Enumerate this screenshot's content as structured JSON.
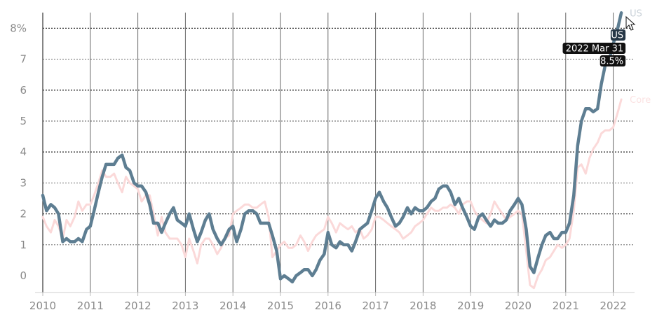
{
  "chart_data": {
    "type": "line",
    "title": "",
    "xlabel": "",
    "ylabel": "",
    "xlim": [
      2009.95,
      2022.45
    ],
    "ylim": [
      -0.5,
      8.5
    ],
    "x_ticks": [
      "2010",
      "2011",
      "2012",
      "2013",
      "2014",
      "2015",
      "2016",
      "2017",
      "2018",
      "2019",
      "2020",
      "2021",
      "2022"
    ],
    "y_ticks": [
      {
        "value": 0,
        "label": "0"
      },
      {
        "value": 1,
        "label": "1"
      },
      {
        "value": 2,
        "label": "2"
      },
      {
        "value": 3,
        "label": "3"
      },
      {
        "value": 4,
        "label": "4"
      },
      {
        "value": 5,
        "label": "5"
      },
      {
        "value": 6,
        "label": "6"
      },
      {
        "value": 7,
        "label": "7"
      },
      {
        "value": 8,
        "label": "8%"
      }
    ],
    "grid": true,
    "series": [
      {
        "name": "US",
        "color": "#5e7e92",
        "x": [
          2010.0,
          2010.08,
          2010.17,
          2010.25,
          2010.33,
          2010.42,
          2010.5,
          2010.58,
          2010.67,
          2010.75,
          2010.83,
          2010.92,
          2011.0,
          2011.08,
          2011.17,
          2011.25,
          2011.33,
          2011.42,
          2011.5,
          2011.58,
          2011.67,
          2011.75,
          2011.83,
          2011.92,
          2012.0,
          2012.08,
          2012.17,
          2012.25,
          2012.33,
          2012.42,
          2012.5,
          2012.58,
          2012.67,
          2012.75,
          2012.83,
          2012.92,
          2013.0,
          2013.08,
          2013.17,
          2013.25,
          2013.33,
          2013.42,
          2013.5,
          2013.58,
          2013.67,
          2013.75,
          2013.83,
          2013.92,
          2014.0,
          2014.08,
          2014.17,
          2014.25,
          2014.33,
          2014.42,
          2014.5,
          2014.58,
          2014.67,
          2014.75,
          2014.83,
          2014.92,
          2015.0,
          2015.08,
          2015.17,
          2015.25,
          2015.33,
          2015.42,
          2015.5,
          2015.58,
          2015.67,
          2015.75,
          2015.83,
          2015.92,
          2016.0,
          2016.08,
          2016.17,
          2016.25,
          2016.33,
          2016.42,
          2016.5,
          2016.58,
          2016.67,
          2016.75,
          2016.83,
          2016.92,
          2017.0,
          2017.08,
          2017.17,
          2017.25,
          2017.33,
          2017.42,
          2017.5,
          2017.58,
          2017.67,
          2017.75,
          2017.83,
          2017.92,
          2018.0,
          2018.08,
          2018.17,
          2018.25,
          2018.33,
          2018.42,
          2018.5,
          2018.58,
          2018.67,
          2018.75,
          2018.83,
          2018.92,
          2019.0,
          2019.08,
          2019.17,
          2019.25,
          2019.33,
          2019.42,
          2019.5,
          2019.58,
          2019.67,
          2019.75,
          2019.83,
          2019.92,
          2020.0,
          2020.08,
          2020.17,
          2020.25,
          2020.33,
          2020.42,
          2020.5,
          2020.58,
          2020.67,
          2020.75,
          2020.83,
          2020.92,
          2021.0,
          2021.08,
          2021.17,
          2021.25,
          2021.33,
          2021.42,
          2021.5,
          2021.58,
          2021.67,
          2021.75,
          2021.83,
          2021.92,
          2022.0,
          2022.08,
          2022.17
        ],
        "values": [
          2.6,
          2.1,
          2.3,
          2.2,
          2.0,
          1.1,
          1.2,
          1.1,
          1.1,
          1.2,
          1.1,
          1.5,
          1.6,
          2.1,
          2.7,
          3.2,
          3.6,
          3.6,
          3.6,
          3.8,
          3.9,
          3.5,
          3.4,
          3.0,
          2.9,
          2.9,
          2.7,
          2.3,
          1.7,
          1.7,
          1.4,
          1.7,
          2.0,
          2.2,
          1.8,
          1.7,
          1.6,
          2.0,
          1.5,
          1.1,
          1.4,
          1.8,
          2.0,
          1.5,
          1.2,
          1.0,
          1.2,
          1.5,
          1.6,
          1.1,
          1.5,
          2.0,
          2.1,
          2.1,
          2.0,
          1.7,
          1.7,
          1.7,
          1.3,
          0.8,
          -0.1,
          0.0,
          -0.1,
          -0.2,
          0.0,
          0.1,
          0.2,
          0.2,
          0.0,
          0.2,
          0.5,
          0.7,
          1.4,
          1.0,
          0.9,
          1.1,
          1.0,
          1.0,
          0.8,
          1.1,
          1.5,
          1.6,
          1.7,
          2.1,
          2.5,
          2.7,
          2.4,
          2.2,
          1.9,
          1.6,
          1.7,
          1.9,
          2.2,
          2.0,
          2.2,
          2.1,
          2.1,
          2.2,
          2.4,
          2.5,
          2.8,
          2.9,
          2.9,
          2.7,
          2.3,
          2.5,
          2.2,
          1.9,
          1.6,
          1.5,
          1.9,
          2.0,
          1.8,
          1.6,
          1.8,
          1.7,
          1.7,
          1.8,
          2.1,
          2.3,
          2.5,
          2.3,
          1.5,
          0.3,
          0.1,
          0.6,
          1.0,
          1.3,
          1.4,
          1.2,
          1.2,
          1.4,
          1.4,
          1.7,
          2.6,
          4.2,
          5.0,
          5.4,
          5.4,
          5.3,
          5.4,
          6.2,
          6.8,
          7.0,
          7.5,
          7.9,
          8.5
        ]
      },
      {
        "name": "Core",
        "color": "#fbd9d9",
        "x": [
          2010.0,
          2010.08,
          2010.17,
          2010.25,
          2010.33,
          2010.42,
          2010.5,
          2010.58,
          2010.67,
          2010.75,
          2010.83,
          2010.92,
          2011.0,
          2011.08,
          2011.17,
          2011.25,
          2011.33,
          2011.42,
          2011.5,
          2011.58,
          2011.67,
          2011.75,
          2011.83,
          2011.92,
          2012.0,
          2012.08,
          2012.17,
          2012.25,
          2012.33,
          2012.42,
          2012.5,
          2012.58,
          2012.67,
          2012.75,
          2012.83,
          2012.92,
          2013.0,
          2013.08,
          2013.17,
          2013.25,
          2013.33,
          2013.42,
          2013.5,
          2013.58,
          2013.67,
          2013.75,
          2013.83,
          2013.92,
          2014.0,
          2014.08,
          2014.17,
          2014.25,
          2014.33,
          2014.42,
          2014.5,
          2014.58,
          2014.67,
          2014.75,
          2014.83,
          2014.92,
          2015.0,
          2015.08,
          2015.17,
          2015.25,
          2015.33,
          2015.42,
          2015.5,
          2015.58,
          2015.67,
          2015.75,
          2015.83,
          2015.92,
          2016.0,
          2016.08,
          2016.17,
          2016.25,
          2016.33,
          2016.42,
          2016.5,
          2016.58,
          2016.67,
          2016.75,
          2016.83,
          2016.92,
          2017.0,
          2017.08,
          2017.17,
          2017.25,
          2017.33,
          2017.42,
          2017.5,
          2017.58,
          2017.67,
          2017.75,
          2017.83,
          2017.92,
          2018.0,
          2018.08,
          2018.17,
          2018.25,
          2018.33,
          2018.42,
          2018.5,
          2018.58,
          2018.67,
          2018.75,
          2018.83,
          2018.92,
          2019.0,
          2019.08,
          2019.17,
          2019.25,
          2019.33,
          2019.42,
          2019.5,
          2019.58,
          2019.67,
          2019.75,
          2019.83,
          2019.92,
          2020.0,
          2020.08,
          2020.17,
          2020.25,
          2020.33,
          2020.42,
          2020.5,
          2020.58,
          2020.67,
          2020.75,
          2020.83,
          2020.92,
          2021.0,
          2021.08,
          2021.17,
          2021.25,
          2021.33,
          2021.42,
          2021.5,
          2021.58,
          2021.67,
          2021.75,
          2021.83,
          2021.92,
          2022.0,
          2022.08,
          2022.17
        ],
        "values": [
          1.9,
          1.6,
          1.4,
          1.8,
          1.6,
          1.2,
          1.8,
          1.6,
          1.9,
          2.4,
          2.1,
          2.3,
          2.3,
          2.6,
          3.0,
          3.4,
          3.2,
          3.2,
          3.3,
          3.0,
          2.7,
          3.2,
          3.0,
          2.9,
          2.8,
          2.4,
          2.6,
          2.6,
          2.0,
          1.3,
          1.9,
          1.4,
          1.2,
          1.2,
          1.2,
          1.0,
          0.6,
          1.2,
          0.8,
          0.4,
          1.0,
          1.2,
          1.2,
          1.0,
          0.7,
          0.9,
          1.2,
          1.3,
          2.0,
          2.1,
          2.2,
          2.3,
          2.3,
          2.2,
          2.2,
          2.3,
          2.4,
          1.9,
          0.6,
          0.8,
          1.0,
          1.1,
          0.9,
          0.9,
          1.0,
          1.3,
          1.1,
          0.8,
          1.1,
          1.3,
          1.4,
          1.5,
          1.9,
          1.7,
          1.4,
          1.7,
          1.6,
          1.5,
          1.6,
          1.4,
          1.5,
          1.2,
          1.3,
          1.5,
          1.9,
          1.9,
          1.8,
          1.7,
          1.6,
          1.5,
          1.4,
          1.2,
          1.3,
          1.4,
          1.6,
          1.7,
          1.8,
          2.0,
          2.2,
          2.1,
          2.1,
          2.2,
          2.2,
          2.3,
          2.2,
          2.0,
          2.3,
          2.4,
          2.4,
          2.1,
          1.9,
          1.8,
          1.7,
          2.0,
          2.4,
          2.2,
          2.0,
          1.8,
          1.9,
          2.0,
          2.1,
          2.0,
          0.8,
          -0.3,
          -0.4,
          0.0,
          0.2,
          0.5,
          0.6,
          0.8,
          1.0,
          0.9,
          1.0,
          1.2,
          2.1,
          3.5,
          3.6,
          3.3,
          3.8,
          4.1,
          4.3,
          4.6,
          4.7,
          4.7,
          4.8,
          5.2,
          5.7
        ]
      }
    ],
    "series_end_labels": [
      {
        "series": "US",
        "label": "US"
      },
      {
        "series": "Core",
        "label": "Core"
      }
    ],
    "tooltip": {
      "series": "US",
      "series_label": "US",
      "date_label": "2022 Mar 31",
      "value_label": "8.5%",
      "x": 2022.17,
      "y": 8.5
    }
  }
}
